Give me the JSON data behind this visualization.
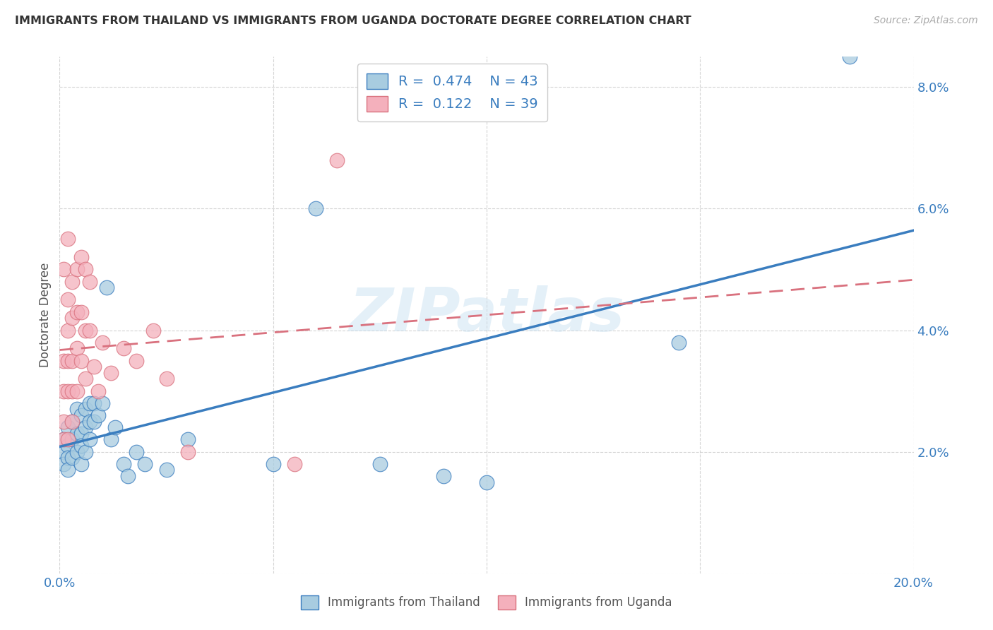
{
  "title": "IMMIGRANTS FROM THAILAND VS IMMIGRANTS FROM UGANDA DOCTORATE DEGREE CORRELATION CHART",
  "source": "Source: ZipAtlas.com",
  "ylabel_label": "Doctorate Degree",
  "x_min": 0.0,
  "x_max": 0.2,
  "y_min": 0.0,
  "y_max": 0.085,
  "x_ticks": [
    0.0,
    0.05,
    0.1,
    0.15,
    0.2
  ],
  "x_tick_labels": [
    "0.0%",
    "",
    "",
    "",
    "20.0%"
  ],
  "y_ticks": [
    0.0,
    0.02,
    0.04,
    0.06,
    0.08
  ],
  "y_tick_labels": [
    "",
    "2.0%",
    "4.0%",
    "6.0%",
    "8.0%"
  ],
  "legend_R_blue": "0.474",
  "legend_N_blue": "43",
  "legend_R_pink": "0.122",
  "legend_N_pink": "39",
  "color_blue": "#a8cce0",
  "color_pink": "#f4b0bc",
  "trendline_blue": "#3a7dbf",
  "trendline_pink": "#d9717e",
  "watermark": "ZIPatlas",
  "thailand_x": [
    0.001,
    0.001,
    0.001,
    0.002,
    0.002,
    0.002,
    0.002,
    0.003,
    0.003,
    0.003,
    0.004,
    0.004,
    0.004,
    0.005,
    0.005,
    0.005,
    0.005,
    0.006,
    0.006,
    0.006,
    0.007,
    0.007,
    0.007,
    0.008,
    0.008,
    0.009,
    0.01,
    0.011,
    0.012,
    0.013,
    0.015,
    0.016,
    0.018,
    0.02,
    0.025,
    0.03,
    0.05,
    0.06,
    0.075,
    0.09,
    0.1,
    0.145,
    0.185
  ],
  "thailand_y": [
    0.022,
    0.02,
    0.018,
    0.024,
    0.021,
    0.019,
    0.017,
    0.025,
    0.022,
    0.019,
    0.027,
    0.023,
    0.02,
    0.026,
    0.023,
    0.021,
    0.018,
    0.027,
    0.024,
    0.02,
    0.028,
    0.025,
    0.022,
    0.028,
    0.025,
    0.026,
    0.028,
    0.047,
    0.022,
    0.024,
    0.018,
    0.016,
    0.02,
    0.018,
    0.017,
    0.022,
    0.018,
    0.06,
    0.018,
    0.016,
    0.015,
    0.038,
    0.085
  ],
  "uganda_x": [
    0.001,
    0.001,
    0.001,
    0.001,
    0.001,
    0.002,
    0.002,
    0.002,
    0.002,
    0.002,
    0.002,
    0.003,
    0.003,
    0.003,
    0.003,
    0.003,
    0.004,
    0.004,
    0.004,
    0.004,
    0.005,
    0.005,
    0.005,
    0.006,
    0.006,
    0.006,
    0.007,
    0.007,
    0.008,
    0.009,
    0.01,
    0.012,
    0.015,
    0.018,
    0.022,
    0.025,
    0.03,
    0.055,
    0.065
  ],
  "uganda_y": [
    0.035,
    0.03,
    0.025,
    0.022,
    0.05,
    0.045,
    0.04,
    0.035,
    0.03,
    0.055,
    0.022,
    0.048,
    0.042,
    0.035,
    0.03,
    0.025,
    0.05,
    0.043,
    0.037,
    0.03,
    0.052,
    0.043,
    0.035,
    0.05,
    0.04,
    0.032,
    0.048,
    0.04,
    0.034,
    0.03,
    0.038,
    0.033,
    0.037,
    0.035,
    0.04,
    0.032,
    0.02,
    0.018,
    0.068
  ]
}
